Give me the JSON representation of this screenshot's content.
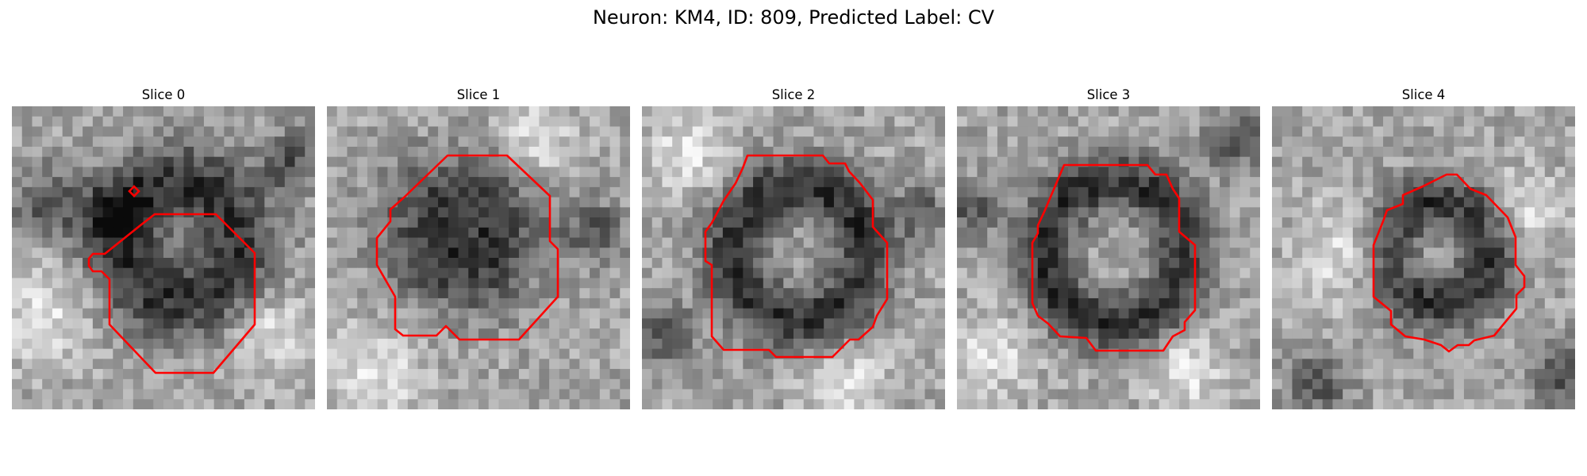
{
  "figure": {
    "title": "Neuron: KM4, ID: 809, Predicted Label: CV"
  },
  "panels": [
    {
      "title": "Slice 0"
    },
    {
      "title": "Slice 1"
    },
    {
      "title": "Slice 2"
    },
    {
      "title": "Slice 3"
    },
    {
      "title": "Slice 4"
    }
  ],
  "colors": {
    "contour": "#ff0000",
    "background": "#ffffff"
  }
}
